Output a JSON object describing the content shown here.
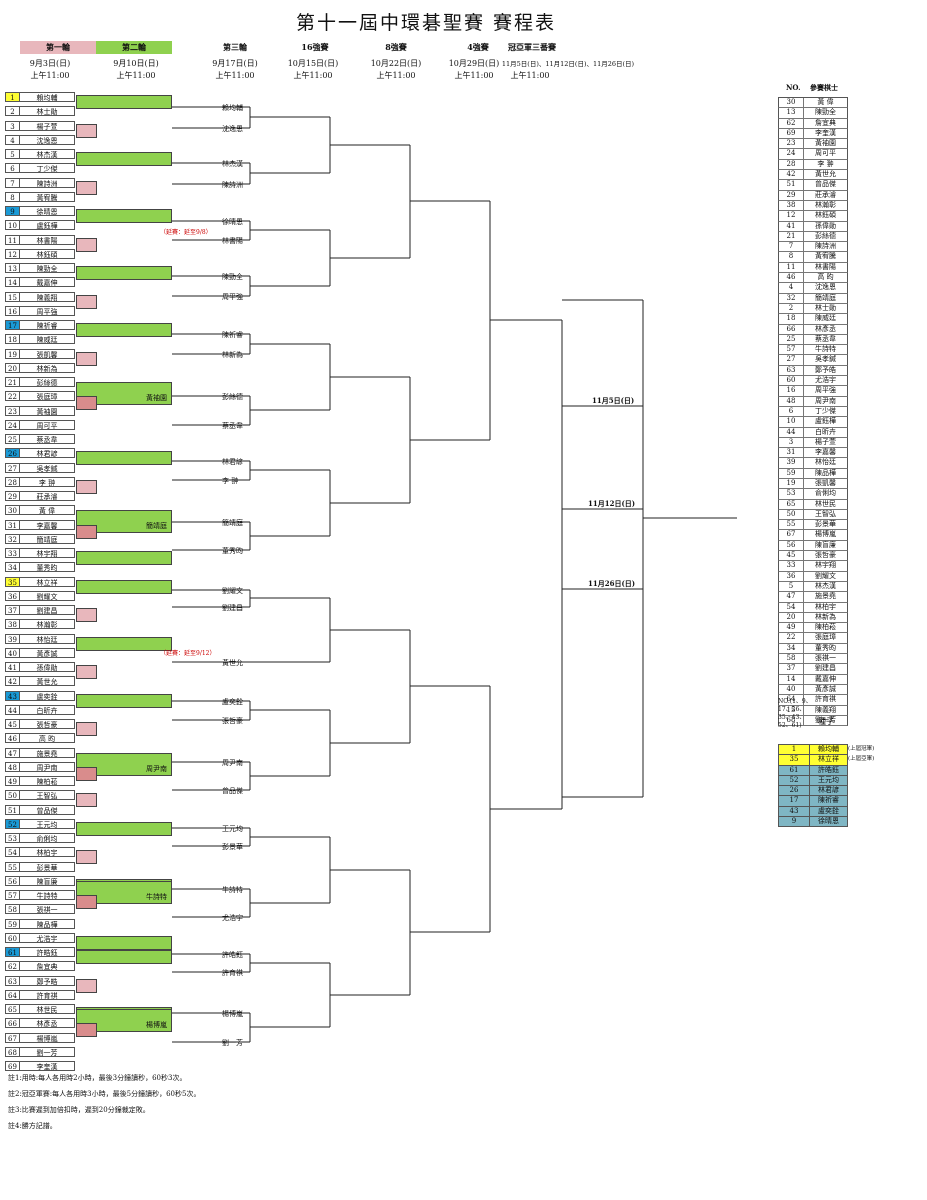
{
  "title": "第十一屆中環碁聖賽 賽程表",
  "rounds": [
    {
      "label": "第一輪",
      "date": "9月3日(日)",
      "time": "上午11:00"
    },
    {
      "label": "第二輪",
      "date": "9月10日(日)",
      "time": "上午11:00"
    },
    {
      "label": "第三輪",
      "date": "9月17日(日)",
      "time": "上午11:00"
    },
    {
      "label": "16強賽",
      "date": "10月15日(日)",
      "time": "上午11:00"
    },
    {
      "label": "8強賽",
      "date": "10月22日(日)",
      "time": "上午11:00"
    },
    {
      "label": "4強賽",
      "date": "10月29日(日)",
      "time": "上午11:00"
    },
    {
      "label": "冠亞軍三番賽",
      "date": "11月5日(日)、11月12日(日)、11月26日(日)",
      "time": "上午11:00"
    }
  ],
  "draw": [
    {
      "no": "1",
      "name": "賴均輔",
      "seed": "yellow"
    },
    {
      "no": "2",
      "name": "林士勛"
    },
    {
      "no": "3",
      "name": "楊子萱"
    },
    {
      "no": "4",
      "name": "沈逸恩"
    },
    {
      "no": "5",
      "name": "林杰漢"
    },
    {
      "no": "6",
      "name": "丁少傑"
    },
    {
      "no": "7",
      "name": "陳詩洲"
    },
    {
      "no": "8",
      "name": "黃宥騰"
    },
    {
      "no": "9",
      "name": "徐晴恩",
      "seed": "blue"
    },
    {
      "no": "10",
      "name": "盧鈺樺"
    },
    {
      "no": "11",
      "name": "林書陽"
    },
    {
      "no": "12",
      "name": "林鈺碩"
    },
    {
      "no": "13",
      "name": "陳勁全"
    },
    {
      "no": "14",
      "name": "戴嘉伸"
    },
    {
      "no": "15",
      "name": "陳義翔"
    },
    {
      "no": "16",
      "name": "周平強"
    },
    {
      "no": "17",
      "name": "陳祈睿",
      "seed": "blue"
    },
    {
      "no": "18",
      "name": "陳威廷"
    },
    {
      "no": "19",
      "name": "張凱馨"
    },
    {
      "no": "20",
      "name": "林新為"
    },
    {
      "no": "21",
      "name": "彭絲德"
    },
    {
      "no": "22",
      "name": "張庭璋"
    },
    {
      "no": "23",
      "name": "黃袖園"
    },
    {
      "no": "24",
      "name": "周可平"
    },
    {
      "no": "25",
      "name": "蔡丞韋"
    },
    {
      "no": "26",
      "name": "林君諺",
      "seed": "blue"
    },
    {
      "no": "27",
      "name": "吳孝鍼"
    },
    {
      "no": "28",
      "name": "李 翀"
    },
    {
      "no": "29",
      "name": "莊承濬"
    },
    {
      "no": "30",
      "name": "黃 偉"
    },
    {
      "no": "31",
      "name": "李嘉馨"
    },
    {
      "no": "32",
      "name": "簡靖庭"
    },
    {
      "no": "33",
      "name": "林宇翔"
    },
    {
      "no": "34",
      "name": "董秀昀"
    },
    {
      "no": "35",
      "name": "林立祥",
      "seed": "yellow"
    },
    {
      "no": "36",
      "name": "劉耀文"
    },
    {
      "no": "37",
      "name": "劉建昌"
    },
    {
      "no": "38",
      "name": "林瀚彰"
    },
    {
      "no": "39",
      "name": "林怡廷"
    },
    {
      "no": "40",
      "name": "黃彥誠"
    },
    {
      "no": "41",
      "name": "孫偉勛"
    },
    {
      "no": "42",
      "name": "黃世允"
    },
    {
      "no": "43",
      "name": "盧奕銓",
      "seed": "blue"
    },
    {
      "no": "44",
      "name": "白昕卉"
    },
    {
      "no": "45",
      "name": "張哲豪"
    },
    {
      "no": "46",
      "name": "高 昀"
    },
    {
      "no": "47",
      "name": "施景堯"
    },
    {
      "no": "48",
      "name": "周尹南"
    },
    {
      "no": "49",
      "name": "陳柏菘"
    },
    {
      "no": "50",
      "name": "王智弘"
    },
    {
      "no": "51",
      "name": "曾品傑"
    },
    {
      "no": "52",
      "name": "王元均",
      "seed": "blue"
    },
    {
      "no": "53",
      "name": "俞俐均"
    },
    {
      "no": "54",
      "name": "林柏宇"
    },
    {
      "no": "55",
      "name": "彭景華"
    },
    {
      "no": "56",
      "name": "陳盲廉"
    },
    {
      "no": "57",
      "name": "牛詩特"
    },
    {
      "no": "58",
      "name": "張祺一"
    },
    {
      "no": "59",
      "name": "陳品樺"
    },
    {
      "no": "60",
      "name": "尤浩宇"
    },
    {
      "no": "61",
      "name": "許皓鈺",
      "seed": "blue"
    },
    {
      "no": "62",
      "name": "詹宜典"
    },
    {
      "no": "63",
      "name": "鄭予皓"
    },
    {
      "no": "64",
      "name": "許育祺"
    },
    {
      "no": "65",
      "name": "林世民"
    },
    {
      "no": "66",
      "name": "林彥丞"
    },
    {
      "no": "67",
      "name": "楊博嵐"
    },
    {
      "no": "68",
      "name": "劉一芳"
    },
    {
      "no": "69",
      "name": "李奎漢"
    }
  ],
  "round2_winners": [
    {
      "name": "黃袖園"
    },
    {
      "name": "簡靖庭"
    },
    {
      "name": "周尹南"
    },
    {
      "name": "牛詩特"
    },
    {
      "name": "楊博嵐"
    }
  ],
  "round3": [
    {
      "name": "賴均輔"
    },
    {
      "name": "沈逸恩"
    },
    {
      "name": "林杰漢"
    },
    {
      "name": "陳詩洲"
    },
    {
      "name": "徐晴恩"
    },
    {
      "name": "林書陽"
    },
    {
      "name": "陳勁全"
    },
    {
      "name": "周平強"
    },
    {
      "name": "陳祈睿"
    },
    {
      "name": "林新為"
    },
    {
      "name": "彭絲德"
    },
    {
      "name": "蔡丞韋"
    },
    {
      "name": "林君諺"
    },
    {
      "name": "李 翀"
    },
    {
      "name": "簡靖庭"
    },
    {
      "name": "董秀昀"
    },
    {
      "name": "劉耀文"
    },
    {
      "name": "劉建昌"
    },
    {
      "name": "黃世允"
    },
    {
      "name": "盧奕銓"
    },
    {
      "name": "張哲豪"
    },
    {
      "name": "周尹南"
    },
    {
      "name": "曾品傑"
    },
    {
      "name": "王元均"
    },
    {
      "name": "彭景華"
    },
    {
      "name": "牛詩特"
    },
    {
      "name": "尤浩宇"
    },
    {
      "name": "許皓鈺"
    },
    {
      "name": "許育祺"
    },
    {
      "name": "楊博嵐"
    },
    {
      "name": "劉一芳"
    }
  ],
  "notes_in_bracket": [
    "（延賽：延至9/8）",
    "（延賽：延至9/12）"
  ],
  "final_dates": [
    "11月5日(日)",
    "11月12日(日)",
    "11月26日(日)"
  ],
  "player_list": {
    "header_no": "NO.",
    "header_name": "參賽棋士",
    "rows": [
      [
        "30",
        "黃 偉"
      ],
      [
        "13",
        "陳勁全"
      ],
      [
        "62",
        "詹宜典"
      ],
      [
        "69",
        "李奎漢"
      ],
      [
        "23",
        "黃袖園"
      ],
      [
        "24",
        "周可平"
      ],
      [
        "28",
        "李 翀"
      ],
      [
        "42",
        "黃世允"
      ],
      [
        "51",
        "曾品傑"
      ],
      [
        "29",
        "莊承濬"
      ],
      [
        "38",
        "林瀚彰"
      ],
      [
        "12",
        "林鈺碩"
      ],
      [
        "41",
        "孫偉勛"
      ],
      [
        "21",
        "彭絲德"
      ],
      [
        "7",
        "陳詩洲"
      ],
      [
        "8",
        "黃宥騰"
      ],
      [
        "11",
        "林書陽"
      ],
      [
        "46",
        "高 昀"
      ],
      [
        "4",
        "沈逸恩"
      ],
      [
        "32",
        "簡靖庭"
      ],
      [
        "2",
        "林士勛"
      ],
      [
        "18",
        "陳威廷"
      ],
      [
        "66",
        "林彥丞"
      ],
      [
        "25",
        "蔡丞韋"
      ],
      [
        "57",
        "牛詩特"
      ],
      [
        "27",
        "吳孝鍼"
      ],
      [
        "63",
        "鄭予皓"
      ],
      [
        "60",
        "尤浩宇"
      ],
      [
        "16",
        "周平強"
      ],
      [
        "48",
        "周尹南"
      ],
      [
        "6",
        "丁少傑"
      ],
      [
        "10",
        "盧鈺樺"
      ],
      [
        "44",
        "白昕卉"
      ],
      [
        "3",
        "楊子萱"
      ],
      [
        "31",
        "李嘉馨"
      ],
      [
        "39",
        "林怡廷"
      ],
      [
        "59",
        "陳品樺"
      ],
      [
        "19",
        "張凱馨"
      ],
      [
        "53",
        "俞俐均"
      ],
      [
        "65",
        "林世民"
      ],
      [
        "50",
        "王智弘"
      ],
      [
        "55",
        "彭景華"
      ],
      [
        "67",
        "楊博嵐"
      ],
      [
        "56",
        "陳盲廉"
      ],
      [
        "45",
        "張哲豪"
      ],
      [
        "33",
        "林宇翔"
      ],
      [
        "36",
        "劉耀文"
      ],
      [
        "5",
        "林杰漢"
      ],
      [
        "47",
        "施景堯"
      ],
      [
        "54",
        "林柏宇"
      ],
      [
        "20",
        "林新為"
      ],
      [
        "49",
        "陳柏菘"
      ],
      [
        "22",
        "張庭璋"
      ],
      [
        "34",
        "董秀昀"
      ],
      [
        "58",
        "張祺一"
      ],
      [
        "37",
        "劉建昌"
      ],
      [
        "14",
        "戴嘉伸"
      ],
      [
        "40",
        "黃彥誠"
      ],
      [
        "64",
        "許育祺"
      ],
      [
        "15",
        "陳義翔"
      ],
      [
        "68",
        "劉一芳"
      ]
    ]
  },
  "seed_legend": {
    "nos": "NO.(1、9、17、26、35、43、52、61)",
    "label": "種子",
    "rows": [
      {
        "no": "1",
        "name": "賴均輔",
        "note": "(上屆冠軍)",
        "color": "#ffff33"
      },
      {
        "no": "35",
        "name": "林立祥",
        "note": "(上屆亞軍)",
        "color": "#ffff33"
      },
      {
        "no": "61",
        "name": "許皓鈺",
        "note": "",
        "color": "#7fb6c4"
      },
      {
        "no": "52",
        "name": "王元均",
        "note": "",
        "color": "#7fb6c4"
      },
      {
        "no": "26",
        "name": "林君諺",
        "note": "",
        "color": "#7fb6c4"
      },
      {
        "no": "17",
        "name": "陳祈睿",
        "note": "",
        "color": "#7fb6c4"
      },
      {
        "no": "43",
        "name": "盧奕銓",
        "note": "",
        "color": "#7fb6c4"
      },
      {
        "no": "9",
        "name": "徐晴恩",
        "note": "",
        "color": "#7fb6c4"
      }
    ]
  },
  "footnotes": [
    "註1:用時:每人各用時2小時，最後3分鐘讀秒，60秒3次。",
    "註2:冠亞軍賽:每人各用時3小時，最後5分鐘讀秒，60秒5次。",
    "註3:比賽遲到加倍扣時，遲到20分鐘裁定敗。",
    "註4:勝方記譜。"
  ]
}
